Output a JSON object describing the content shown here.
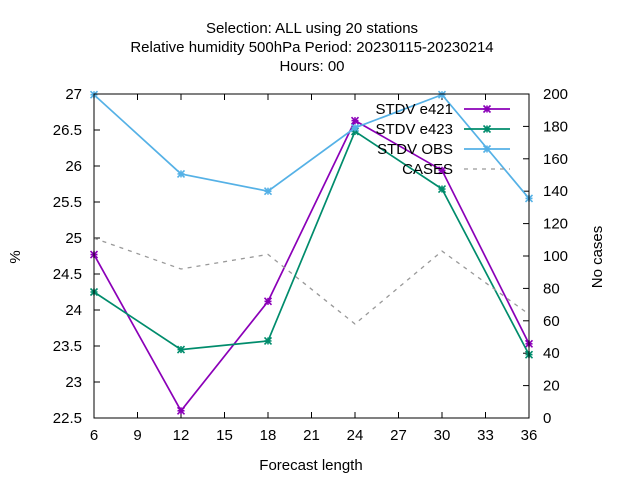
{
  "chart_data": {
    "type": "line",
    "title_lines": [
      "Selection: ALL using    20 stations",
      "Relative humidity 500hPa   Period: 20230115-20230214",
      "Hours:  00"
    ],
    "xlabel": "Forecast length",
    "ylabel": "%",
    "y2label": "No cases",
    "x_ticks": [
      6,
      9,
      12,
      15,
      18,
      21,
      24,
      27,
      30,
      33,
      36
    ],
    "y_ticks": [
      22.5,
      23,
      23.5,
      24,
      24.5,
      25,
      25.5,
      26,
      26.5,
      27
    ],
    "y2_ticks": [
      0,
      20,
      40,
      60,
      80,
      100,
      120,
      140,
      160,
      180,
      200
    ],
    "xlim": [
      6,
      36
    ],
    "ylim": [
      22.5,
      27
    ],
    "y2lim": [
      0,
      200
    ],
    "legend_position": "top-right",
    "series": [
      {
        "name": "STDV e421",
        "axis": "y",
        "color": "#8b00b8",
        "marker": "x-star",
        "dash": false,
        "x": [
          6,
          12,
          18,
          24,
          30,
          36
        ],
        "values": [
          24.77,
          22.6,
          24.12,
          26.63,
          25.94,
          23.53
        ]
      },
      {
        "name": "STDV e423",
        "axis": "y",
        "color": "#008c6c",
        "marker": "x-star",
        "dash": false,
        "x": [
          6,
          12,
          18,
          24,
          30,
          36
        ],
        "values": [
          24.25,
          23.45,
          23.57,
          26.48,
          25.68,
          23.38
        ]
      },
      {
        "name": "STDV OBS",
        "axis": "y",
        "color": "#55b1e6",
        "marker": "x-star",
        "dash": false,
        "x": [
          6,
          12,
          18,
          24,
          30,
          36
        ],
        "values": [
          26.99,
          25.89,
          25.65,
          26.53,
          26.99,
          25.55
        ]
      },
      {
        "name": "CASES",
        "axis": "y2",
        "color": "#999999",
        "marker": "none",
        "dash": true,
        "x": [
          6,
          12,
          18,
          24,
          30,
          36
        ],
        "values": [
          111,
          92,
          101,
          58,
          103,
          64
        ]
      }
    ]
  }
}
